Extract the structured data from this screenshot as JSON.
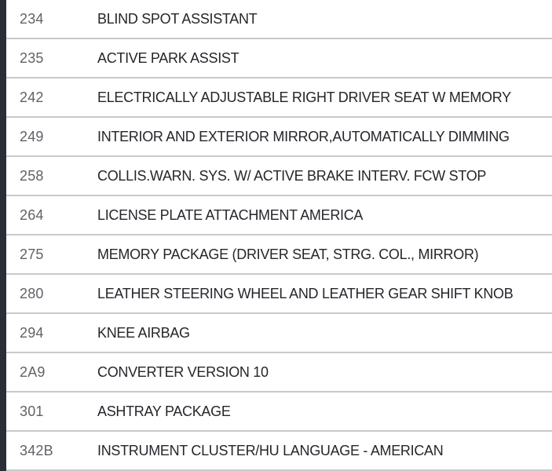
{
  "colors": {
    "bar": "#2b2e36",
    "separator": "#c9c9c9",
    "code_text": "#5f6368",
    "description_text": "#24262b",
    "background": "#ffffff"
  },
  "table": {
    "columns": [
      "code",
      "description"
    ],
    "rows": [
      {
        "code": "234",
        "description": "BLIND SPOT ASSISTANT"
      },
      {
        "code": "235",
        "description": "ACTIVE PARK ASSIST"
      },
      {
        "code": "242",
        "description": "ELECTRICALLY ADJUSTABLE RIGHT DRIVER SEAT W MEMORY"
      },
      {
        "code": "249",
        "description": "INTERIOR AND EXTERIOR MIRROR,AUTOMATICALLY DIMMING"
      },
      {
        "code": "258",
        "description": "COLLIS.WARN. SYS. W/ ACTIVE BRAKE INTERV. FCW STOP"
      },
      {
        "code": "264",
        "description": "LICENSE PLATE ATTACHMENT AMERICA"
      },
      {
        "code": "275",
        "description": "MEMORY PACKAGE (DRIVER SEAT, STRG. COL., MIRROR)"
      },
      {
        "code": "280",
        "description": "LEATHER STEERING WHEEL AND LEATHER GEAR SHIFT KNOB"
      },
      {
        "code": "294",
        "description": "KNEE AIRBAG"
      },
      {
        "code": "2A9",
        "description": "CONVERTER VERSION 10"
      },
      {
        "code": "301",
        "description": "ASHTRAY PACKAGE"
      },
      {
        "code": "342B",
        "description": "INSTRUMENT CLUSTER/HU LANGUAGE - AMERICAN"
      }
    ]
  }
}
